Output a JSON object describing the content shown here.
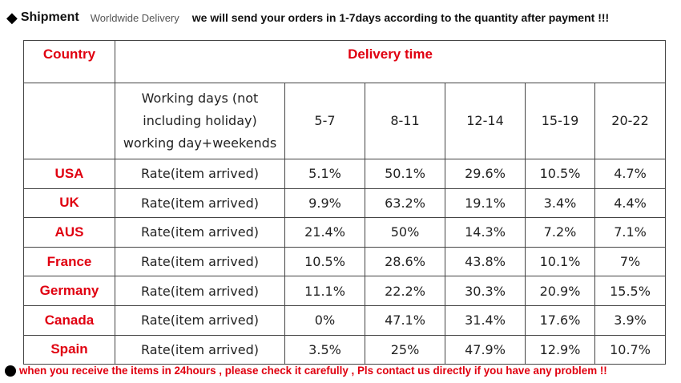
{
  "header": {
    "bullet_icon": "diamond-icon",
    "title": "Shipment",
    "subtitle": "Worldwide Delivery",
    "message": "we will send your orders in 1-7days according to the quantity after payment  !!!"
  },
  "table": {
    "country_header": "Country",
    "delivery_header": "Delivery time",
    "working_days_label": [
      "Working days (not",
      "including holiday)",
      "working day+weekends"
    ],
    "ranges": [
      "5-7",
      "8-11",
      "12-14",
      "15-19",
      "20-22"
    ],
    "rows": [
      {
        "country": "USA",
        "label": "Rate(item arrived)",
        "values": [
          "5.1%",
          "50.1%",
          "29.6%",
          "10.5%",
          "4.7%"
        ]
      },
      {
        "country": "UK",
        "label": "Rate(item arrived)",
        "values": [
          "9.9%",
          "63.2%",
          "19.1%",
          "3.4%",
          "4.4%"
        ]
      },
      {
        "country": "AUS",
        "label": "Rate(item arrived)",
        "values": [
          "21.4%",
          "50%",
          "14.3%",
          "7.2%",
          "7.1%"
        ]
      },
      {
        "country": "France",
        "label": "Rate(item arrived)",
        "values": [
          "10.5%",
          "28.6%",
          "43.8%",
          "10.1%",
          "7%"
        ]
      },
      {
        "country": "Germany",
        "label": "Rate(item arrived)",
        "values": [
          "11.1%",
          "22.2%",
          "30.3%",
          "20.9%",
          "15.5%"
        ]
      },
      {
        "country": "Canada",
        "label": "Rate(item arrived)",
        "values": [
          "0%",
          "47.1%",
          "31.4%",
          "17.6%",
          "3.9%"
        ]
      },
      {
        "country": "Spain",
        "label": "Rate(item arrived)",
        "values": [
          "3.5%",
          "25%",
          "47.9%",
          "12.9%",
          "10.7%"
        ]
      }
    ]
  },
  "footer": {
    "bullet_icon": "circle-icon",
    "message": "when you receive the items in 24hours , please check it carefully , Pls contact us directly if you have any problem !!"
  },
  "colors": {
    "accent": "#e00010"
  }
}
